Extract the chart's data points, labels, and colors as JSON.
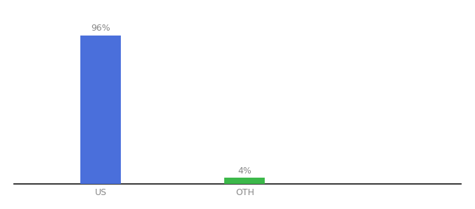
{
  "categories": [
    "US",
    "OTH"
  ],
  "values": [
    96,
    4
  ],
  "bar_colors": [
    "#4a6fdb",
    "#3cb84a"
  ],
  "bar_labels": [
    "96%",
    "4%"
  ],
  "background_color": "#ffffff",
  "text_color": "#888888",
  "ylim": [
    0,
    108
  ],
  "bar_width": 0.28,
  "figsize": [
    6.8,
    3.0
  ],
  "dpi": 100,
  "label_fontsize": 9,
  "tick_fontsize": 9,
  "x_positions": [
    1,
    2
  ],
  "xlim": [
    0.4,
    3.5
  ]
}
